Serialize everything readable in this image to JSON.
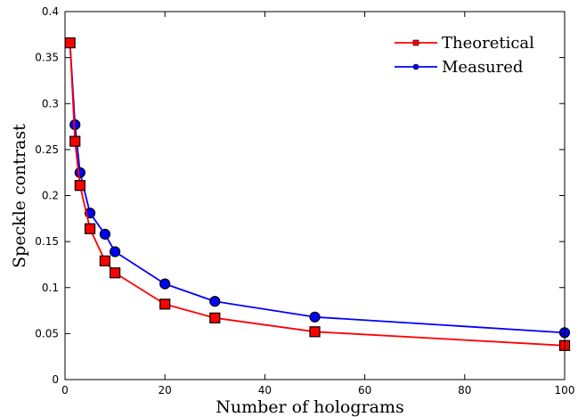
{
  "chart_data": {
    "type": "line",
    "title": "",
    "xlabel": "Number of holograms",
    "ylabel": "Speckle contrast",
    "xlim": [
      0,
      100
    ],
    "ylim": [
      0,
      0.4
    ],
    "xticks": [
      "0",
      "20",
      "40",
      "60",
      "80",
      "100"
    ],
    "yticks": [
      "0",
      "0.05",
      "0.1",
      "0.15",
      "0.2",
      "0.25",
      "0.3",
      "0.35",
      "0.4"
    ],
    "grid": false,
    "legend_position": "top-right",
    "series": [
      {
        "name": "Measured",
        "color": "#0000ff",
        "marker": "circle",
        "x": [
          1,
          2,
          3,
          5,
          8,
          10,
          20,
          30,
          50,
          100
        ],
        "y": [
          0.366,
          0.277,
          0.225,
          0.181,
          0.158,
          0.139,
          0.104,
          0.085,
          0.068,
          0.051
        ]
      },
      {
        "name": "Theoretical",
        "color": "#ff0000",
        "marker": "square",
        "x": [
          1,
          2,
          3,
          5,
          8,
          10,
          20,
          30,
          50,
          100
        ],
        "y": [
          0.366,
          0.259,
          0.211,
          0.164,
          0.129,
          0.116,
          0.082,
          0.067,
          0.052,
          0.037
        ]
      }
    ],
    "legend_order": [
      "Theoretical",
      "Measured"
    ]
  }
}
